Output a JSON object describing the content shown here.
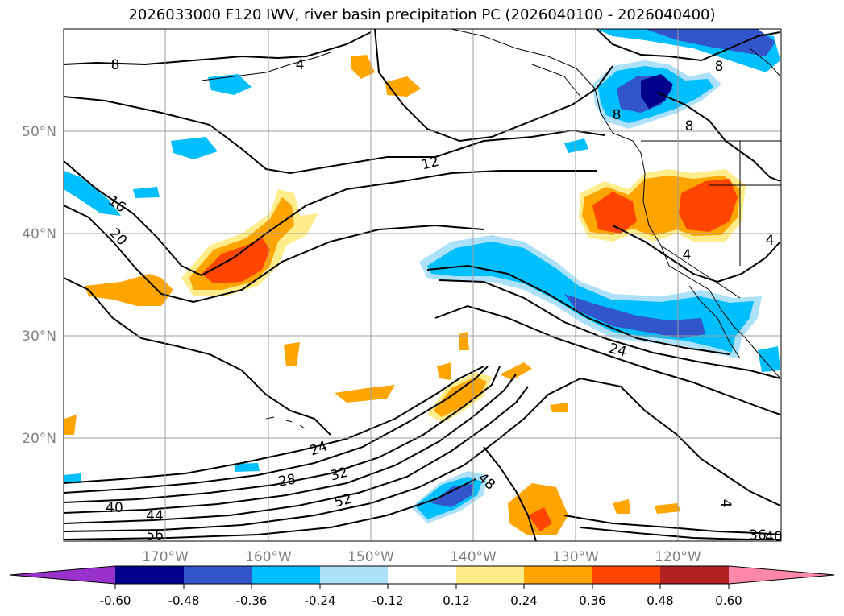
{
  "title": "2026033000 F120 IWV, river basin precipitation PC (2026040100 - 2026040400)",
  "lat_labels": [
    "50°N",
    "40°N",
    "30°N",
    "20°N"
  ],
  "lon_labels": [
    "170°W",
    "160°W",
    "150°W",
    "140°W",
    "130°W",
    "120°W"
  ],
  "colorbar": {
    "ticks": [
      "-0.60",
      "-0.48",
      "-0.36",
      "-0.24",
      "-0.12",
      "0.12",
      "0.24",
      "0.36",
      "0.48",
      "0.60"
    ],
    "colors": [
      "#9932CC",
      "#00008B",
      "#3355CC",
      "#00BFFF",
      "#ADE1FA",
      "#FFFFFF",
      "#FFEC8B",
      "#FFA500",
      "#FF4500",
      "#B22222",
      "#FF88AA"
    ]
  },
  "contour_labels": [
    "8",
    "4",
    "8",
    "8",
    "8",
    "12",
    "16",
    "20",
    "24",
    "24",
    "28",
    "32",
    "40",
    "44",
    "48",
    "52",
    "56",
    "36",
    "40",
    "4",
    "4",
    "4"
  ]
}
